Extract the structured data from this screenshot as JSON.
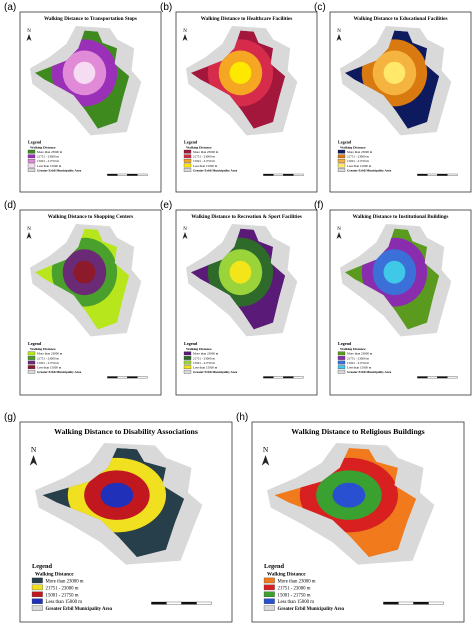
{
  "panels": [
    {
      "label": "(a)",
      "title": "Walking Distance to Transportation Stops",
      "north": "N",
      "legend_title": "Legend",
      "legend_subtitle": "Walking Distance",
      "area_label": "Greater Erbil Municipality Area",
      "legend": [
        {
          "text": "More than 23000 m",
          "color": "#3f8a1e"
        },
        {
          "text": "21751 - 23000 m",
          "color": "#9b30b8"
        },
        {
          "text": "15001 - 21750 m",
          "color": "#e08ad8"
        },
        {
          "text": "Less than 15000 m",
          "color": "#f6dcf2"
        }
      ]
    },
    {
      "label": "(b)",
      "title": "Walking Distance to Healthcare Facilities",
      "north": "N",
      "legend_title": "Legend",
      "legend_subtitle": "Walking Distance",
      "area_label": "Greater Erbil Municipality Area",
      "legend": [
        {
          "text": "More than 23000 m",
          "color": "#a3173d"
        },
        {
          "text": "21751 - 23000 m",
          "color": "#d62b4a"
        },
        {
          "text": "15001 - 21750 m",
          "color": "#f5a623"
        },
        {
          "text": "Less than 15000 m",
          "color": "#ffe800"
        }
      ]
    },
    {
      "label": "(c)",
      "title": "Walking Distance to Educational Facilities",
      "north": "N",
      "legend_title": "Legend",
      "legend_subtitle": "Walking Distance",
      "area_label": "Greater Erbil Municipality Area",
      "legend": [
        {
          "text": "More than 23000 m",
          "color": "#0e1a5e"
        },
        {
          "text": "21751 - 23000 m",
          "color": "#d87a10"
        },
        {
          "text": "15001 - 21750 m",
          "color": "#f5b340"
        },
        {
          "text": "Less than 15000 m",
          "color": "#ffe86a"
        }
      ]
    },
    {
      "label": "(d)",
      "title": "Walking Distance to Shopping Centers",
      "north": "N",
      "legend_title": "Legend",
      "legend_subtitle": "Walking Distance",
      "area_label": "Greater Erbil Municipality Area",
      "legend": [
        {
          "text": "More than 23000 m",
          "color": "#b7e61d"
        },
        {
          "text": "21751 - 23000 m",
          "color": "#4aa02c"
        },
        {
          "text": "15001 - 21750 m",
          "color": "#6b2a76"
        },
        {
          "text": "Less than 15000 m",
          "color": "#8d1a2a"
        }
      ]
    },
    {
      "label": "(e)",
      "title": "Walking Distance to Recreation & Sport Facilities",
      "north": "N",
      "legend_title": "Legend",
      "legend_subtitle": "Walking Distance",
      "area_label": "Greater Erbil Municipality Area",
      "legend": [
        {
          "text": "More than 23000 m",
          "color": "#5a1a78"
        },
        {
          "text": "21751 - 23000 m",
          "color": "#2e6a2a"
        },
        {
          "text": "15001 - 21750 m",
          "color": "#9bd33a"
        },
        {
          "text": "Less than 15000 m",
          "color": "#f2e51a"
        }
      ]
    },
    {
      "label": "(f)",
      "title": "Walking Distance to Institutional Buildings",
      "north": "N",
      "legend_title": "Legend",
      "legend_subtitle": "Walking Distance",
      "area_label": "Greater Erbil Municipality Area",
      "legend": [
        {
          "text": "More than 23000 m",
          "color": "#5a9a1e"
        },
        {
          "text": "21751 - 23000 m",
          "color": "#8a2cae"
        },
        {
          "text": "15001 - 21750 m",
          "color": "#3a70d8"
        },
        {
          "text": "Less than 15000 m",
          "color": "#40c8e8"
        }
      ]
    },
    {
      "label": "(g)",
      "title": "Walking Distance to Disability Associations",
      "north": "N",
      "legend_title": "Legend",
      "legend_subtitle": "Walking Distance",
      "area_label": "Greater Erbil Municipality Area",
      "legend": [
        {
          "text": "More than 23000 m",
          "color": "#263f4a"
        },
        {
          "text": "21751 - 23000 m",
          "color": "#f0e020"
        },
        {
          "text": "15001 - 21750 m",
          "color": "#c0181e"
        },
        {
          "text": "Less than 15000 m",
          "color": "#2030b8"
        }
      ]
    },
    {
      "label": "(h)",
      "title": "Walking Distance to Religious Buildings",
      "north": "N",
      "legend_title": "Legend",
      "legend_subtitle": "Walking Distance",
      "area_label": "Greater Erbil Municipality Area",
      "legend": [
        {
          "text": "More than 23000 m",
          "color": "#f07a1c"
        },
        {
          "text": "21751 - 23000 m",
          "color": "#d82020"
        },
        {
          "text": "15001 - 21750 m",
          "color": "#3aa030"
        },
        {
          "text": "Less than 15000 m",
          "color": "#2850d0"
        }
      ]
    }
  ]
}
